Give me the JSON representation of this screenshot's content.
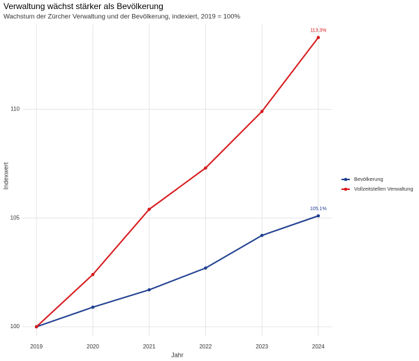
{
  "chart_data": {
    "type": "line",
    "title": "Verwaltung wächst stärker als Bevölkerung",
    "subtitle": "Wachstum der Zürcher Verwaltung und der Bevölkerung, indexiert, 2019 = 100%",
    "x_label": "Jahr",
    "y_label": "Indexwert",
    "x": [
      2019,
      2020,
      2021,
      2022,
      2023,
      2024
    ],
    "xlim": [
      2018.75,
      2024.25
    ],
    "xticks": [
      2019,
      2020,
      2021,
      2022,
      2023,
      2024
    ],
    "ylim": [
      99.55,
      113.9
    ],
    "yticks": [
      100,
      105,
      110
    ],
    "grid": true,
    "legend": "right",
    "series": [
      {
        "name": "Bevölkerung",
        "color": "#1f3f8f",
        "values": [
          100,
          100.9,
          101.7,
          102.7,
          104.2,
          105.1
        ],
        "value_labels": [
          null,
          null,
          null,
          null,
          null,
          "105.1%"
        ]
      },
      {
        "name": "Vollzeitstellen Verwaltung",
        "color": "#d7191c",
        "values": [
          100,
          102.4,
          105.4,
          107.3,
          109.9,
          113.3
        ],
        "value_labels": [
          null,
          null,
          null,
          null,
          null,
          "113.3%"
        ]
      }
    ]
  }
}
